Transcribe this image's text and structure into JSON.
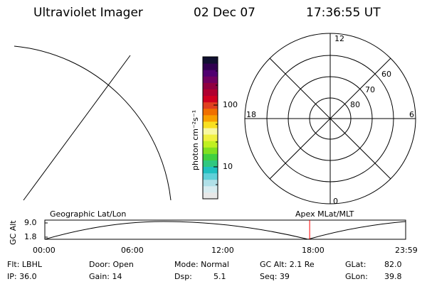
{
  "header": {
    "title": "Ultraviolet Imager",
    "date": "02 Dec 07",
    "time": "17:36:55 UT"
  },
  "colorbar": {
    "label": "photon cm⁻²s⁻¹",
    "tick_100": "100",
    "tick_10": "10",
    "colors": [
      "#e8e8e8",
      "#d8ecf0",
      "#b0e0e8",
      "#60d0d8",
      "#20c0c0",
      "#30c880",
      "#40d040",
      "#80e020",
      "#c0f020",
      "#f0f040",
      "#f8f8a0",
      "#f8e020",
      "#f8a000",
      "#f07000",
      "#e04020",
      "#d00020",
      "#b00030",
      "#900040",
      "#700060",
      "#500070",
      "#300050",
      "#101030"
    ]
  },
  "polar": {
    "mlt_12": "12",
    "mlt_18": "18",
    "mlt_6": "6",
    "mlt_0": "0",
    "lat_60": "60",
    "lat_70": "70",
    "lat_80": "80"
  },
  "orbit": {
    "left_label": "Geographic Lat/Lon",
    "right_label": "Apex MLat/MLT",
    "yaxis_label": "GC Alt",
    "ytick_top": "9.0",
    "ytick_bottom": "1.8",
    "xticks": [
      "00:00",
      "06:00",
      "12:00",
      "18:00",
      "23:59"
    ],
    "marker_color": "#ff0000",
    "marker_time_fraction": 0.734
  },
  "footer": {
    "flt": "Flt: LBHL",
    "ip": "IP: 36.0",
    "door": "Door: Open",
    "gain": "Gain: 14",
    "mode": "Mode: Normal",
    "dsp_label": "Dsp:",
    "dsp_value": "5.1",
    "gcalt": "GC Alt: 2.1 Re",
    "seq": "Seq: 39",
    "glat_label": "GLat:",
    "glat_value": "82.0",
    "glon_label": "GLon:",
    "glon_value": "39.8"
  }
}
